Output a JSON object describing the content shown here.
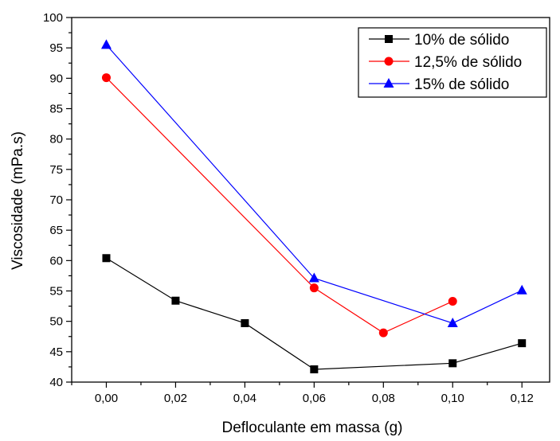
{
  "chart_data": {
    "type": "line",
    "title": "",
    "xlabel": "Defloculante em massa (g)",
    "ylabel": "Viscosidade (mPa.s)",
    "xlim": [
      -0.01,
      0.128
    ],
    "ylim": [
      40,
      100
    ],
    "xticks": [
      0.0,
      0.02,
      0.04,
      0.06,
      0.08,
      0.1,
      0.12
    ],
    "xtick_labels": [
      "0,00",
      "0,02",
      "0,04",
      "0,06",
      "0,08",
      "0,10",
      "0,12"
    ],
    "yticks": [
      40,
      45,
      50,
      55,
      60,
      65,
      70,
      75,
      80,
      85,
      90,
      95,
      100
    ],
    "ytick_labels": [
      "40",
      "45",
      "50",
      "55",
      "60",
      "65",
      "70",
      "75",
      "80",
      "85",
      "90",
      "95",
      "100"
    ],
    "grid": false,
    "legend_position": "top-right",
    "series": [
      {
        "name": "10% de sólido",
        "color": "#000000",
        "marker": "square",
        "x": [
          0.0,
          0.02,
          0.04,
          0.06,
          0.1,
          0.12
        ],
        "y": [
          60.4,
          53.4,
          49.7,
          42.1,
          43.1,
          46.4
        ]
      },
      {
        "name": "12,5% de sólido",
        "color": "#ff0000",
        "marker": "circle",
        "x": [
          0.0,
          0.06,
          0.08,
          0.1
        ],
        "y": [
          90.1,
          55.5,
          48.1,
          53.3
        ]
      },
      {
        "name": "15% de sólido",
        "color": "#0000ff",
        "marker": "triangle",
        "x": [
          0.0,
          0.06,
          0.1,
          0.12
        ],
        "y": [
          95.5,
          57.1,
          49.7,
          55.1
        ]
      }
    ]
  }
}
